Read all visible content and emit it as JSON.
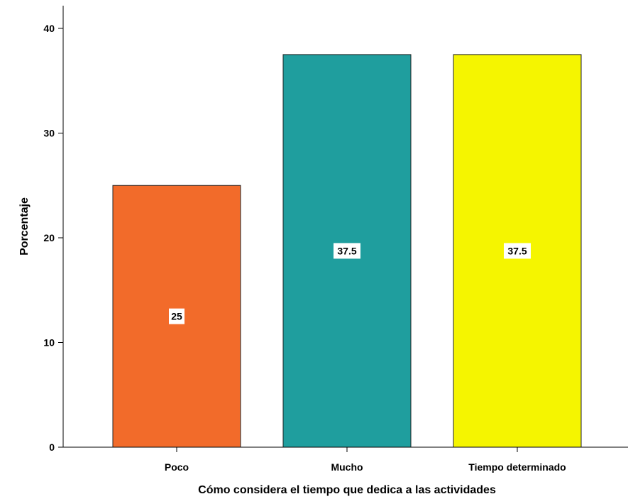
{
  "chart_data": {
    "type": "bar",
    "title": "",
    "xlabel": "Cómo considera el tiempo que dedica a las actividades",
    "ylabel": "Porcentaje",
    "categories": [
      "Poco",
      "Mucho",
      "Tiempo determinado"
    ],
    "values": [
      25,
      37.5,
      37.5
    ],
    "data_labels": [
      "25",
      "37.5",
      "37.5"
    ],
    "colors": [
      "#f26b2a",
      "#1f9e9e",
      "#f5f500"
    ],
    "ylim": [
      0,
      40
    ],
    "yticks": [
      0,
      10,
      20,
      30,
      40
    ],
    "ytick_labels": [
      "0",
      "10",
      "20",
      "30",
      "40"
    ],
    "grid": false,
    "legend": "none"
  }
}
